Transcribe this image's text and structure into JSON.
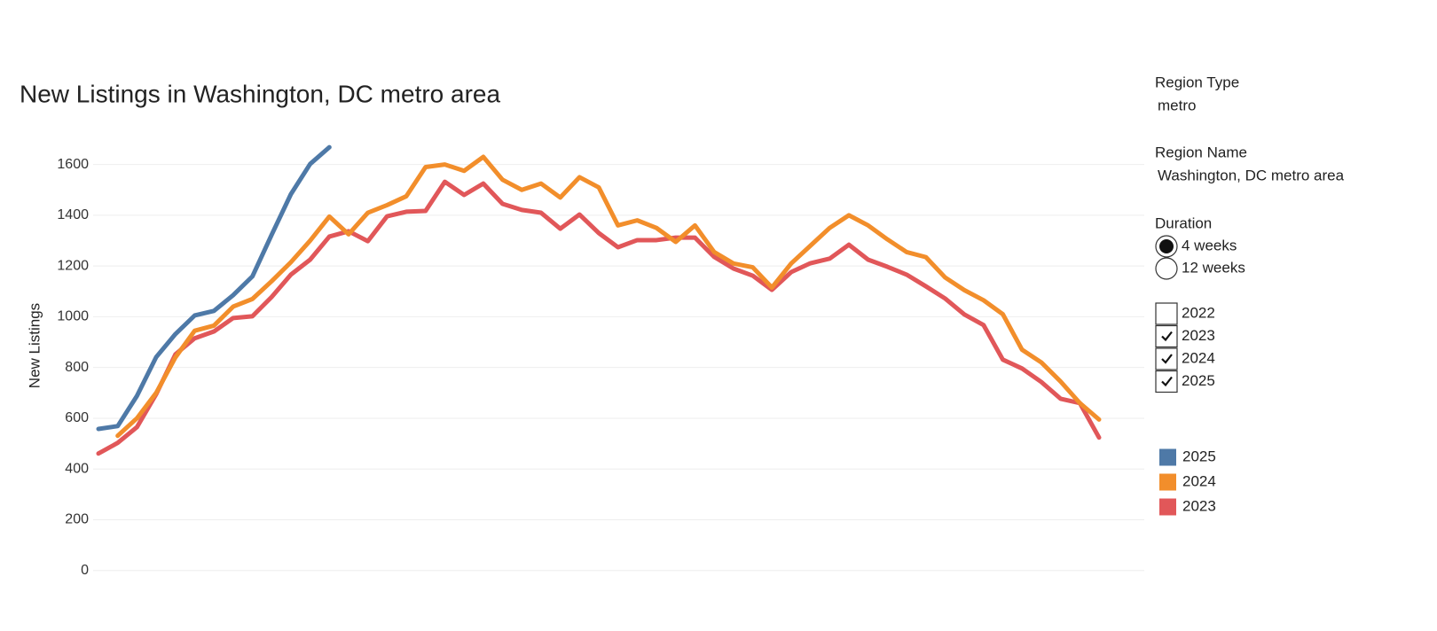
{
  "chart_data": {
    "type": "line",
    "title": "New Listings in Washington, DC metro area",
    "y_label": "New Listings",
    "x": [
      1,
      2,
      3,
      4,
      5,
      6,
      7,
      8,
      9,
      10,
      11,
      12,
      13,
      14,
      15,
      16,
      17,
      18,
      19,
      20,
      21,
      22,
      23,
      24,
      25,
      26,
      27,
      28,
      29,
      30,
      31,
      32,
      33,
      34,
      35,
      36,
      37,
      38,
      39,
      40,
      41,
      42,
      43,
      44,
      45,
      46,
      47,
      48,
      49,
      50,
      51,
      52,
      53
    ],
    "xlim": [
      1,
      53
    ],
    "ylim": [
      -200,
      1700
    ],
    "yticks": [
      0,
      200,
      400,
      600,
      800,
      1000,
      1200,
      1400,
      1600
    ],
    "grid": true,
    "series": [
      {
        "name": "2025",
        "color": "#4e79a7",
        "values": [
          558,
          569,
          688,
          841,
          932,
          1005,
          1023,
          1085,
          1159,
          1323,
          1483,
          1602,
          1668,
          null,
          null,
          null,
          null,
          null,
          null,
          null,
          null,
          null,
          null,
          null,
          null,
          null,
          null,
          null,
          null,
          null,
          null,
          null,
          null,
          null,
          null,
          null,
          null,
          null,
          null,
          null,
          null,
          null,
          null,
          null,
          null,
          null,
          null,
          null,
          null,
          null,
          null,
          null,
          null
        ]
      },
      {
        "name": "2024",
        "color": "#f28e2b",
        "values": [
          null,
          531,
          600,
          700,
          840,
          945,
          965,
          1040,
          1070,
          1140,
          1215,
          1300,
          1395,
          1325,
          1410,
          1440,
          1475,
          1590,
          1600,
          1575,
          1630,
          1540,
          1500,
          1525,
          1470,
          1550,
          1510,
          1360,
          1380,
          1350,
          1295,
          1360,
          1255,
          1210,
          1195,
          1115,
          1210,
          1280,
          1350,
          1400,
          1360,
          1305,
          1255,
          1235,
          1155,
          1105,
          1065,
          1010,
          870,
          820,
          745,
          660,
          595
        ]
      },
      {
        "name": "2023",
        "color": "#e15759",
        "values": [
          461,
          503,
          565,
          695,
          852,
          915,
          942,
          995,
          1002,
          1078,
          1166,
          1225,
          1316,
          1337,
          1298,
          1396,
          1414,
          1417,
          1532,
          1480,
          1525,
          1445,
          1421,
          1410,
          1347,
          1403,
          1330,
          1274,
          1302,
          1302,
          1312,
          1312,
          1236,
          1190,
          1162,
          1106,
          1176,
          1211,
          1229,
          1284,
          1225,
          1197,
          1166,
          1120,
          1072,
          1009,
          967,
          831,
          796,
          743,
          677,
          660,
          524
        ]
      }
    ]
  },
  "controls": {
    "region_type": {
      "label": "Region Type",
      "value": "metro"
    },
    "region_name": {
      "label": "Region Name",
      "value": "Washington, DC metro area"
    },
    "duration": {
      "label": "Duration",
      "options": [
        "4 weeks",
        "12 weeks"
      ],
      "selected": 0
    },
    "years": [
      {
        "label": "2022",
        "checked": false
      },
      {
        "label": "2023",
        "checked": true
      },
      {
        "label": "2024",
        "checked": true
      },
      {
        "label": "2025",
        "checked": true
      }
    ]
  }
}
